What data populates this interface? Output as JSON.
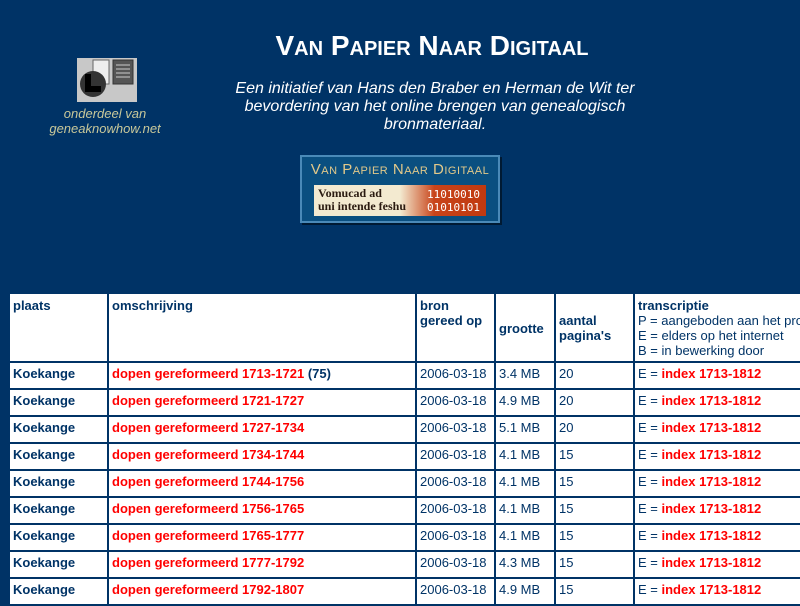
{
  "header": {
    "title": "Van Papier Naar Digitaal",
    "intro": "Een initiatief van Hans den Braber en Herman de Wit ter bevordering van het online brengen van genealogisch bronmateriaal.",
    "sub1": "onderdeel van",
    "sub2": "geneaknowhow.net"
  },
  "banner": {
    "title": "Van Papier Naar Digitaal",
    "script1": "Vomucad ad",
    "script2": "uni intende feshu",
    "bin1": "11010010",
    "bin2": "01010101"
  },
  "table": {
    "headers": {
      "plaats": "plaats",
      "omschrijving": "omschrijving",
      "bron1": "bron",
      "bron2": "gereed op",
      "grootte": "grootte",
      "aantal1": "aantal",
      "aantal2": "pagina's",
      "trans": "transcriptie",
      "p": "P = aangeboden aan het pro",
      "e": "E = elders op het internet",
      "b": "B = in bewerking door"
    },
    "rows": [
      {
        "plaats": "Koekange",
        "omschrijving": "dopen gereformeerd 1713-1721",
        "extra": " (75)",
        "datum": "2006-03-18",
        "grootte": "3.4 MB",
        "paginas": "20",
        "prefix": "E = ",
        "index": "index 1713-1812"
      },
      {
        "plaats": "Koekange",
        "omschrijving": "dopen gereformeerd 1721-1727",
        "extra": "",
        "datum": "2006-03-18",
        "grootte": "4.9 MB",
        "paginas": "20",
        "prefix": "E = ",
        "index": "index 1713-1812"
      },
      {
        "plaats": "Koekange",
        "omschrijving": "dopen gereformeerd 1727-1734",
        "extra": "",
        "datum": "2006-03-18",
        "grootte": "5.1 MB",
        "paginas": "20",
        "prefix": "E = ",
        "index": "index 1713-1812"
      },
      {
        "plaats": "Koekange",
        "omschrijving": "dopen gereformeerd 1734-1744",
        "extra": "",
        "datum": "2006-03-18",
        "grootte": "4.1 MB",
        "paginas": "15",
        "prefix": "E = ",
        "index": "index 1713-1812"
      },
      {
        "plaats": "Koekange",
        "omschrijving": "dopen gereformeerd 1744-1756",
        "extra": "",
        "datum": "2006-03-18",
        "grootte": "4.1 MB",
        "paginas": "15",
        "prefix": "E = ",
        "index": "index 1713-1812"
      },
      {
        "plaats": "Koekange",
        "omschrijving": "dopen gereformeerd 1756-1765",
        "extra": "",
        "datum": "2006-03-18",
        "grootte": "4.1 MB",
        "paginas": "15",
        "prefix": "E = ",
        "index": "index 1713-1812"
      },
      {
        "plaats": "Koekange",
        "omschrijving": "dopen gereformeerd 1765-1777",
        "extra": "",
        "datum": "2006-03-18",
        "grootte": "4.1 MB",
        "paginas": "15",
        "prefix": "E = ",
        "index": "index 1713-1812"
      },
      {
        "plaats": "Koekange",
        "omschrijving": "dopen gereformeerd 1777-1792",
        "extra": "",
        "datum": "2006-03-18",
        "grootte": "4.3 MB",
        "paginas": "15",
        "prefix": "E = ",
        "index": "index 1713-1812"
      },
      {
        "plaats": "Koekange",
        "omschrijving": "dopen gereformeerd 1792-1807",
        "extra": "",
        "datum": "2006-03-18",
        "grootte": "4.9 MB",
        "paginas": "15",
        "prefix": "E = ",
        "index": "index 1713-1812"
      }
    ]
  },
  "colors": {
    "background": "#003366",
    "link": "#ff0000",
    "text": "#003366"
  }
}
